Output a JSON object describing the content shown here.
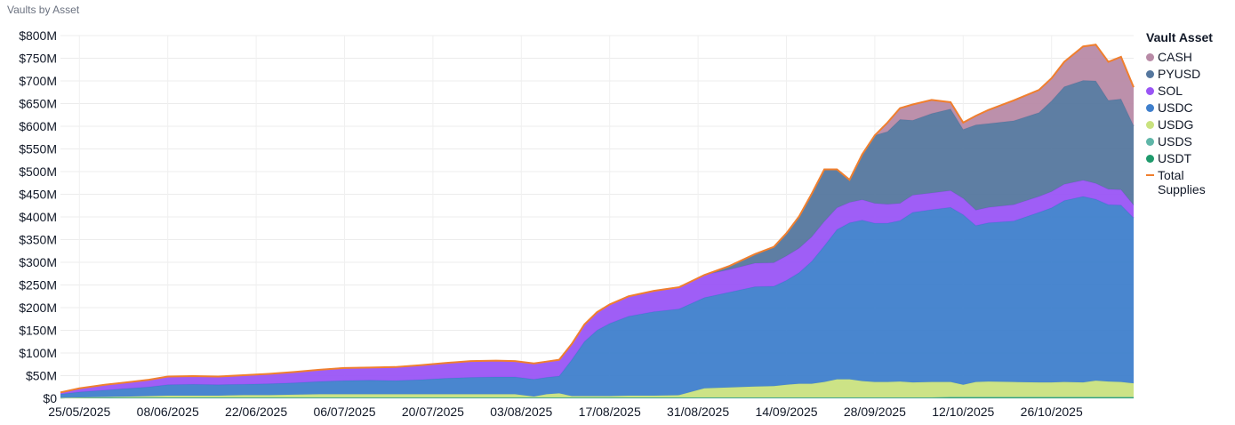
{
  "header": {
    "title": "Vaults by Asset"
  },
  "legend": {
    "title": "Vault Asset",
    "items": [
      {
        "label": "CASH",
        "color": "#b88aa6",
        "kind": "dot"
      },
      {
        "label": "PYUSD",
        "color": "#55779e",
        "kind": "dot"
      },
      {
        "label": "SOL",
        "color": "#9a55f5",
        "kind": "dot"
      },
      {
        "label": "USDC",
        "color": "#3f7fcc",
        "kind": "dot"
      },
      {
        "label": "USDG",
        "color": "#c9e27f",
        "kind": "dot"
      },
      {
        "label": "USDS",
        "color": "#5fb6a8",
        "kind": "dot"
      },
      {
        "label": "USDT",
        "color": "#1f9a6c",
        "kind": "dot"
      },
      {
        "label": "Total Supplies",
        "color": "#f07f2e",
        "kind": "line"
      }
    ]
  },
  "chart_data": {
    "type": "area",
    "stacked": true,
    "title": "Vaults by Asset",
    "xlabel": "",
    "ylabel": "",
    "y_format": "$M",
    "ylim": [
      0,
      800
    ],
    "yticks": [
      0,
      50,
      100,
      150,
      200,
      250,
      300,
      350,
      400,
      450,
      500,
      550,
      600,
      650,
      700,
      750,
      800
    ],
    "ytick_labels": [
      "$0",
      "$50M",
      "$100M",
      "$150M",
      "$200M",
      "$250M",
      "$300M",
      "$350M",
      "$400M",
      "$450M",
      "$500M",
      "$550M",
      "$600M",
      "$650M",
      "$700M",
      "$750M",
      "$800M"
    ],
    "xlim": [
      "2025-05-22",
      "2025-11-08"
    ],
    "xticks": [
      "2025-05-25",
      "2025-06-08",
      "2025-06-22",
      "2025-07-06",
      "2025-07-20",
      "2025-08-03",
      "2025-08-17",
      "2025-08-31",
      "2025-09-14",
      "2025-09-28",
      "2025-10-12",
      "2025-10-26"
    ],
    "xtick_labels": [
      "25/05/2025",
      "08/06/2025",
      "22/06/2025",
      "06/07/2025",
      "20/07/2025",
      "03/08/2025",
      "17/08/2025",
      "31/08/2025",
      "14/09/2025",
      "28/09/2025",
      "12/10/2025",
      "26/10/2025"
    ],
    "grid": true,
    "legend_position": "right",
    "x": [
      "2025-05-22",
      "2025-05-25",
      "2025-05-29",
      "2025-06-02",
      "2025-06-05",
      "2025-06-08",
      "2025-06-12",
      "2025-06-16",
      "2025-06-20",
      "2025-06-24",
      "2025-06-28",
      "2025-07-02",
      "2025-07-06",
      "2025-07-10",
      "2025-07-14",
      "2025-07-18",
      "2025-07-22",
      "2025-07-26",
      "2025-07-30",
      "2025-08-02",
      "2025-08-05",
      "2025-08-07",
      "2025-08-09",
      "2025-08-11",
      "2025-08-13",
      "2025-08-15",
      "2025-08-17",
      "2025-08-20",
      "2025-08-24",
      "2025-08-28",
      "2025-09-01",
      "2025-09-05",
      "2025-09-09",
      "2025-09-12",
      "2025-09-14",
      "2025-09-16",
      "2025-09-18",
      "2025-09-20",
      "2025-09-22",
      "2025-09-24",
      "2025-09-26",
      "2025-09-28",
      "2025-09-30",
      "2025-10-02",
      "2025-10-04",
      "2025-10-07",
      "2025-10-10",
      "2025-10-12",
      "2025-10-14",
      "2025-10-16",
      "2025-10-20",
      "2025-10-24",
      "2025-10-26",
      "2025-10-28",
      "2025-10-31",
      "2025-11-02",
      "2025-11-04",
      "2025-11-06",
      "2025-11-08"
    ],
    "series": [
      {
        "name": "USDT",
        "values": [
          1,
          2,
          2,
          2,
          2,
          2,
          2,
          2,
          2,
          2,
          2,
          2,
          2,
          2,
          2,
          2,
          2,
          2,
          2,
          2,
          2,
          2,
          2,
          2,
          2,
          2,
          2,
          2,
          2,
          2,
          2,
          2,
          2,
          2,
          2,
          2,
          2,
          2,
          2,
          2,
          2,
          2,
          2,
          2,
          2,
          2,
          3,
          3,
          3,
          3,
          3,
          3,
          3,
          3,
          3,
          3,
          3,
          3,
          3
        ]
      },
      {
        "name": "USDS",
        "values": [
          0,
          0,
          0,
          0,
          0,
          0,
          0,
          0,
          0,
          0,
          0,
          0,
          0,
          0,
          0,
          0,
          0,
          0,
          0,
          0,
          0,
          0,
          0,
          0,
          0,
          0,
          0,
          0,
          0,
          0,
          0,
          0,
          0,
          0,
          0,
          0,
          0,
          0,
          0,
          0,
          0,
          0,
          0,
          0,
          0,
          0,
          0,
          0,
          0,
          0,
          0,
          0,
          0,
          0,
          0,
          0,
          0,
          0,
          0
        ]
      },
      {
        "name": "USDG",
        "values": [
          0,
          0,
          1,
          2,
          3,
          4,
          4,
          4,
          5,
          5,
          6,
          7,
          7,
          7,
          7,
          7,
          7,
          7,
          7,
          7,
          2,
          7,
          9,
          3,
          3,
          3,
          3,
          4,
          4,
          5,
          20,
          22,
          24,
          25,
          28,
          30,
          30,
          34,
          40,
          40,
          36,
          34,
          34,
          35,
          33,
          34,
          33,
          27,
          33,
          34,
          33,
          32,
          32,
          33,
          32,
          36,
          34,
          33,
          30
        ]
      },
      {
        "name": "USDC",
        "values": [
          8,
          12,
          15,
          18,
          20,
          24,
          25,
          24,
          24,
          25,
          26,
          28,
          30,
          31,
          30,
          32,
          35,
          37,
          38,
          38,
          38,
          37,
          38,
          80,
          120,
          145,
          160,
          175,
          185,
          190,
          200,
          210,
          220,
          220,
          230,
          245,
          270,
          300,
          330,
          345,
          355,
          350,
          350,
          355,
          375,
          380,
          385,
          375,
          345,
          350,
          355,
          375,
          385,
          400,
          410,
          400,
          390,
          390,
          365
        ]
      },
      {
        "name": "SOL",
        "values": [
          4,
          8,
          12,
          14,
          16,
          18,
          18,
          18,
          20,
          22,
          24,
          26,
          28,
          28,
          30,
          32,
          34,
          36,
          36,
          35,
          35,
          35,
          36,
          35,
          38,
          40,
          42,
          44,
          46,
          48,
          50,
          50,
          52,
          52,
          54,
          54,
          54,
          54,
          48,
          45,
          45,
          44,
          42,
          38,
          38,
          37,
          37,
          36,
          34,
          34,
          36,
          35,
          36,
          36,
          36,
          35,
          34,
          34,
          28
        ]
      },
      {
        "name": "PYUSD",
        "values": [
          0,
          0,
          0,
          0,
          0,
          0,
          0,
          0,
          0,
          0,
          0,
          0,
          0,
          0,
          0,
          0,
          0,
          0,
          0,
          0,
          0,
          0,
          0,
          0,
          0,
          0,
          0,
          0,
          0,
          0,
          0,
          8,
          20,
          35,
          50,
          70,
          95,
          115,
          85,
          50,
          100,
          150,
          160,
          185,
          165,
          175,
          180,
          152,
          188,
          185,
          185,
          185,
          200,
          215,
          220,
          226,
          196,
          200,
          175
        ]
      },
      {
        "name": "CASH",
        "values": [
          0,
          0,
          0,
          0,
          0,
          0,
          0,
          0,
          0,
          0,
          0,
          0,
          0,
          0,
          0,
          0,
          0,
          0,
          0,
          0,
          0,
          0,
          0,
          0,
          0,
          0,
          0,
          0,
          0,
          0,
          0,
          0,
          0,
          0,
          0,
          0,
          0,
          0,
          0,
          0,
          0,
          0,
          20,
          25,
          35,
          30,
          15,
          15,
          20,
          30,
          45,
          50,
          50,
          55,
          75,
          80,
          85,
          93,
          85
        ]
      }
    ],
    "colors": {
      "USDT": "#1f9a6c",
      "USDS": "#5fb6a8",
      "USDG": "#c9e27f",
      "USDC": "#3f7fcc",
      "SOL": "#9a55f5",
      "PYUSD": "#55779e",
      "CASH": "#b88aa6",
      "Total Supplies": "#f07f2e"
    },
    "total_series_name": "Total Supplies"
  }
}
